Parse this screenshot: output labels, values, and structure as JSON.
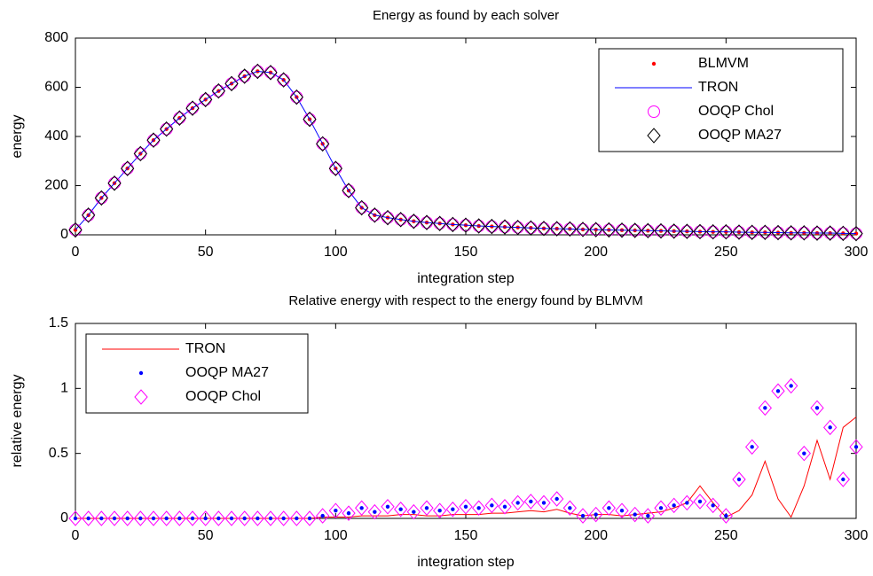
{
  "chart_data": [
    {
      "type": "line",
      "title": "Energy as found by each solver",
      "x_label": "integration step",
      "y_label": "energy",
      "xlim": [
        0,
        300
      ],
      "xticks": [
        0,
        50,
        100,
        150,
        200,
        250,
        300
      ],
      "ylim": [
        0,
        800
      ],
      "yticks": [
        0,
        200,
        400,
        600,
        800
      ],
      "legend": "upper right",
      "x": [
        0,
        5,
        10,
        15,
        20,
        25,
        30,
        35,
        40,
        45,
        50,
        55,
        60,
        65,
        70,
        75,
        80,
        85,
        90,
        95,
        100,
        105,
        110,
        115,
        120,
        125,
        130,
        135,
        140,
        145,
        150,
        155,
        160,
        165,
        170,
        175,
        180,
        185,
        190,
        195,
        200,
        205,
        210,
        215,
        220,
        225,
        230,
        235,
        240,
        245,
        250,
        255,
        260,
        265,
        270,
        275,
        280,
        285,
        290,
        295,
        300
      ],
      "series": [
        {
          "name": "BLMVM",
          "color": "#ff0000",
          "marker": "dot",
          "values": [
            20,
            80,
            150,
            210,
            270,
            330,
            385,
            430,
            475,
            515,
            550,
            585,
            615,
            645,
            665,
            660,
            630,
            560,
            470,
            370,
            270,
            180,
            110,
            80,
            70,
            62,
            55,
            50,
            46,
            42,
            39,
            36,
            34,
            32,
            30,
            28,
            26,
            25,
            24,
            22,
            21,
            20,
            19,
            18,
            17,
            16,
            15,
            14,
            13,
            12,
            12,
            11,
            10,
            10,
            9,
            8,
            8,
            7,
            7,
            6,
            5
          ]
        },
        {
          "name": "TRON",
          "color": "#0000ff",
          "marker": "line",
          "values": [
            20,
            80,
            150,
            210,
            270,
            330,
            385,
            430,
            475,
            515,
            550,
            585,
            615,
            645,
            665,
            660,
            630,
            560,
            470,
            370,
            270,
            180,
            110,
            80,
            70,
            62,
            55,
            50,
            46,
            42,
            39,
            36,
            34,
            32,
            30,
            28,
            26,
            25,
            24,
            22,
            21,
            20,
            19,
            18,
            17,
            16,
            15,
            14,
            13,
            12,
            12,
            11,
            10,
            10,
            9,
            8,
            8,
            7,
            7,
            6,
            5
          ]
        },
        {
          "name": "OOQP Chol",
          "color": "#ff00ff",
          "marker": "circle",
          "values": [
            20,
            80,
            150,
            210,
            270,
            330,
            385,
            430,
            475,
            515,
            550,
            585,
            615,
            645,
            665,
            660,
            630,
            560,
            470,
            370,
            270,
            180,
            110,
            80,
            70,
            62,
            55,
            50,
            46,
            42,
            39,
            36,
            34,
            32,
            30,
            28,
            26,
            25,
            24,
            22,
            21,
            20,
            19,
            18,
            17,
            16,
            15,
            14,
            13,
            12,
            12,
            11,
            10,
            10,
            9,
            8,
            8,
            7,
            7,
            6,
            5
          ]
        },
        {
          "name": "OOQP MA27",
          "color": "#000000",
          "marker": "diamond",
          "values": [
            20,
            80,
            150,
            210,
            270,
            330,
            385,
            430,
            475,
            515,
            550,
            585,
            615,
            645,
            665,
            660,
            630,
            560,
            470,
            370,
            270,
            180,
            110,
            80,
            70,
            62,
            55,
            50,
            46,
            42,
            39,
            36,
            34,
            32,
            30,
            28,
            26,
            25,
            24,
            22,
            21,
            20,
            19,
            18,
            17,
            16,
            15,
            14,
            13,
            12,
            12,
            11,
            10,
            10,
            9,
            8,
            8,
            7,
            7,
            6,
            5
          ]
        }
      ]
    },
    {
      "type": "line",
      "title": "Relative energy with respect to the energy found by BLMVM",
      "x_label": "integration step",
      "y_label": "relative energy",
      "xlim": [
        0,
        300
      ],
      "xticks": [
        0,
        50,
        100,
        150,
        200,
        250,
        300
      ],
      "ylim": [
        0,
        1.5
      ],
      "yticks": [
        0,
        0.5,
        1,
        1.5
      ],
      "legend": "upper left",
      "x": [
        0,
        5,
        10,
        15,
        20,
        25,
        30,
        35,
        40,
        45,
        50,
        55,
        60,
        65,
        70,
        75,
        80,
        85,
        90,
        95,
        100,
        105,
        110,
        115,
        120,
        125,
        130,
        135,
        140,
        145,
        150,
        155,
        160,
        165,
        170,
        175,
        180,
        185,
        190,
        195,
        200,
        205,
        210,
        215,
        220,
        225,
        230,
        235,
        240,
        245,
        250,
        255,
        260,
        265,
        270,
        275,
        280,
        285,
        290,
        295,
        300
      ],
      "series": [
        {
          "name": "TRON",
          "color": "#ff0000",
          "marker": "line",
          "values": [
            0,
            0,
            0,
            0,
            0,
            0,
            0,
            0,
            0,
            0,
            0,
            0,
            0,
            0,
            0,
            0,
            0,
            0,
            0,
            0.01,
            0.01,
            0.01,
            0.02,
            0.02,
            0.02,
            0.03,
            0.03,
            0.02,
            0.02,
            0.03,
            0.03,
            0.03,
            0.04,
            0.04,
            0.05,
            0.06,
            0.05,
            0.07,
            0.04,
            0.02,
            0.03,
            0.03,
            0.02,
            0.03,
            0.04,
            0.05,
            0.08,
            0.12,
            0.25,
            0.12,
            0.01,
            0.06,
            0.18,
            0.44,
            0.15,
            0.01,
            0.25,
            0.6,
            0.3,
            0.7,
            0.78
          ]
        },
        {
          "name": "OOQP MA27",
          "color": "#0000ff",
          "marker": "dot",
          "values": [
            0,
            0,
            0,
            0,
            0,
            0,
            0,
            0,
            0,
            0,
            0,
            0,
            0,
            0,
            0,
            0,
            0,
            0,
            0,
            0.02,
            0.06,
            0.04,
            0.08,
            0.05,
            0.09,
            0.07,
            0.05,
            0.08,
            0.06,
            0.07,
            0.09,
            0.08,
            0.1,
            0.09,
            0.12,
            0.13,
            0.12,
            0.15,
            0.08,
            0.02,
            0.03,
            0.08,
            0.06,
            0.03,
            0.02,
            0.08,
            0.1,
            0.12,
            0.13,
            0.1,
            0.02,
            0.3,
            0.55,
            0.85,
            0.98,
            1.02,
            0.5,
            0.85,
            0.7,
            0.3,
            0.55
          ]
        },
        {
          "name": "OOQP Chol",
          "color": "#ff00ff",
          "marker": "diamond",
          "values": [
            0,
            0,
            0,
            0,
            0,
            0,
            0,
            0,
            0,
            0,
            0,
            0,
            0,
            0,
            0,
            0,
            0,
            0,
            0,
            0.02,
            0.06,
            0.04,
            0.08,
            0.05,
            0.09,
            0.07,
            0.05,
            0.08,
            0.06,
            0.07,
            0.09,
            0.08,
            0.1,
            0.09,
            0.12,
            0.13,
            0.12,
            0.15,
            0.08,
            0.02,
            0.03,
            0.08,
            0.06,
            0.03,
            0.02,
            0.08,
            0.1,
            0.12,
            0.13,
            0.1,
            0.02,
            0.3,
            0.55,
            0.85,
            0.98,
            1.02,
            0.5,
            0.85,
            0.7,
            0.3,
            0.55
          ]
        }
      ]
    }
  ]
}
